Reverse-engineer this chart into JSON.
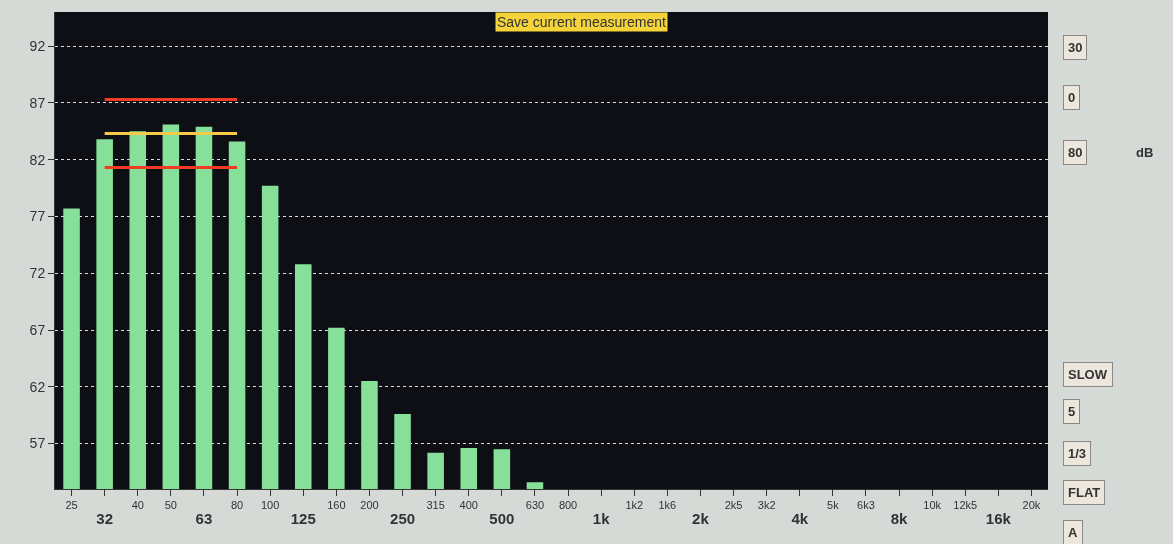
{
  "chart_data": {
    "type": "bar",
    "categories": [
      "25",
      "32",
      "40",
      "50",
      "63",
      "80",
      "100",
      "125",
      "160",
      "200",
      "250",
      "315",
      "400",
      "500",
      "630",
      "800",
      "1k",
      "1k2",
      "1k6",
      "2k",
      "2k5",
      "3k2",
      "4k",
      "5k",
      "6k3",
      "8k",
      "10k",
      "12k5",
      "16k",
      "20k"
    ],
    "series": [
      {
        "color": "#86e09a",
        "values": [
          77.7,
          83.8,
          84.5,
          85.1,
          84.9,
          83.6,
          79.7,
          72.8,
          67.2,
          62.5,
          59.6,
          56.2,
          56.6,
          56.5,
          53.6,
          null,
          null,
          null,
          null,
          null,
          null,
          null,
          null,
          null,
          null,
          null,
          null,
          null,
          null,
          null
        ]
      },
      {
        "type": "line",
        "color": "#f03a22",
        "x": [
          "32",
          "40",
          "50",
          "63",
          "80"
        ],
        "values": [
          87.3,
          87.3,
          87.3,
          87.3,
          87.3
        ]
      },
      {
        "type": "line",
        "color": "#f7c94a",
        "x": [
          "32",
          "40",
          "50",
          "63",
          "80"
        ],
        "values": [
          84.3,
          84.3,
          84.3,
          84.3,
          84.3
        ]
      },
      {
        "type": "line",
        "color": "#f03a22",
        "x": [
          "32",
          "40",
          "50",
          "63",
          "80"
        ],
        "values": [
          81.3,
          81.3,
          81.3,
          81.3,
          81.3
        ]
      }
    ],
    "ylim": [
      53,
      95
    ],
    "yticks": [
      57,
      62,
      67,
      72,
      77,
      82,
      87,
      92
    ],
    "grid": "y",
    "marker": "none",
    "line_style": "solid",
    "annotations": [
      "Save current measurement",
      "30",
      "0",
      "80",
      "dB",
      "SLOW",
      "5",
      "1/3",
      "FLAT",
      "A"
    ]
  }
}
